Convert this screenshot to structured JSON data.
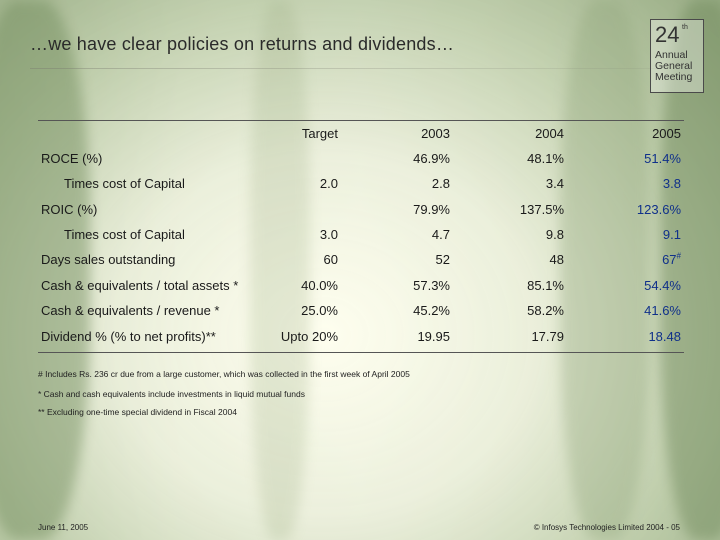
{
  "slide": {
    "title": "…we have clear policies on returns and dividends…",
    "logo": {
      "number": "24",
      "superscript": "th",
      "line1": "Annual",
      "line2": "General",
      "line3": "Meeting"
    }
  },
  "table": {
    "headers": {
      "target": "Target",
      "y2003": "2003",
      "y2004": "2004",
      "y2005": "2005"
    },
    "rows": [
      {
        "label": "ROCE (%)",
        "target": "",
        "y2003": "46.9%",
        "y2004": "48.1%",
        "y2005": "51.4%"
      },
      {
        "label": "Times cost of Capital",
        "target": "2.0",
        "y2003": "2.8",
        "y2004": "3.4",
        "y2005": "3.8"
      },
      {
        "label": "ROIC (%)",
        "target": "",
        "y2003": "79.9%",
        "y2004": "137.5%",
        "y2005": "123.6%"
      },
      {
        "label": "Times cost of Capital",
        "target": "3.0",
        "y2003": "4.7",
        "y2004": "9.8",
        "y2005": "9.1"
      },
      {
        "label": "Days sales outstanding",
        "target": "60",
        "y2003": "52",
        "y2004": "48",
        "y2005": "67",
        "y2005_mark": "#"
      },
      {
        "label": "Cash & equivalents / total assets *",
        "target": "40.0%",
        "y2003": "57.3%",
        "y2004": "85.1%",
        "y2005": "54.4%"
      },
      {
        "label": "Cash & equivalents / revenue *",
        "target": "25.0%",
        "y2003": "45.2%",
        "y2004": "58.2%",
        "y2005": "41.6%"
      },
      {
        "label": "Dividend % (% to net profits)**",
        "target": "Upto 20%",
        "y2003": "19.95",
        "y2004": "17.79",
        "y2005": "18.48"
      }
    ]
  },
  "notes": [
    "# Includes Rs. 236 cr due from a large customer, which was collected in the first week of April 2005",
    "* Cash and cash equivalents include investments in liquid mutual funds",
    "** Excluding one-time special dividend in Fiscal 2004"
  ],
  "footer": {
    "date": "June 11, 2005",
    "copyright": "© Infosys Technologies Limited 2004 - 05"
  }
}
